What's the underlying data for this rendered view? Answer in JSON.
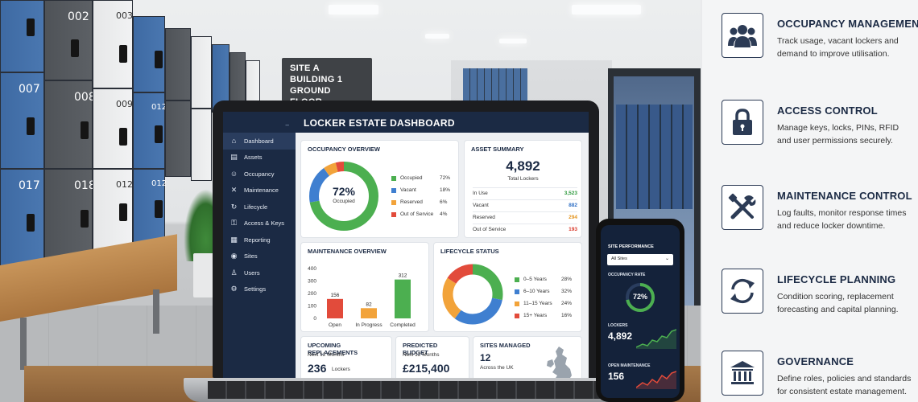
{
  "scene": {
    "sign": [
      "SITE A",
      "BUILDING 1",
      "GROUND FLOOR"
    ],
    "lockers": [
      {
        "num": "002",
        "color": "grey"
      },
      {
        "num": "003",
        "color": "white"
      },
      {
        "num": "007",
        "color": "blue"
      },
      {
        "num": "008",
        "color": "grey"
      },
      {
        "num": "009",
        "color": "white"
      },
      {
        "num": "012",
        "color": "blue"
      },
      {
        "num": "017",
        "color": "blue"
      },
      {
        "num": "018",
        "color": "grey"
      },
      {
        "num": "012",
        "color": "white"
      },
      {
        "num": "012",
        "color": "blue"
      }
    ]
  },
  "dashboard": {
    "title": "LOCKER ESTATE DASHBOARD",
    "nav": [
      {
        "label": "Dashboard",
        "icon": "home-icon",
        "glyph": "⌂"
      },
      {
        "label": "Assets",
        "icon": "assets-icon",
        "glyph": "▤"
      },
      {
        "label": "Occupancy",
        "icon": "person-icon",
        "glyph": "☺"
      },
      {
        "label": "Maintenance",
        "icon": "wrench-icon",
        "glyph": "✕"
      },
      {
        "label": "Lifecycle",
        "icon": "refresh-icon",
        "glyph": "↻"
      },
      {
        "label": "Access & Keys",
        "icon": "key-icon",
        "glyph": "⚿"
      },
      {
        "label": "Reporting",
        "icon": "report-icon",
        "glyph": "▦"
      },
      {
        "label": "Sites",
        "icon": "location-icon",
        "glyph": "◉"
      },
      {
        "label": "Users",
        "icon": "user-icon",
        "glyph": "♙"
      },
      {
        "label": "Settings",
        "icon": "gear-icon",
        "glyph": "⚙"
      }
    ],
    "occupancy": {
      "title": "OCCUPANCY OVERVIEW",
      "center_value": "72%",
      "center_label": "Occupied",
      "slices": [
        {
          "label": "Occupied",
          "value": "72%",
          "pct": 72,
          "color": "#4caf50"
        },
        {
          "label": "Vacant",
          "value": "18%",
          "pct": 18,
          "color": "#3f7fd0"
        },
        {
          "label": "Reserved",
          "value": "6%",
          "pct": 6,
          "color": "#f2a33a"
        },
        {
          "label": "Out of Service",
          "value": "4%",
          "pct": 4,
          "color": "#e24b3b"
        }
      ]
    },
    "asset_summary": {
      "title": "ASSET SUMMARY",
      "total": "4,892",
      "total_label": "Total Lockers",
      "rows": [
        {
          "label": "In Use",
          "value": "3,523",
          "color": "#2e9a3e"
        },
        {
          "label": "Vacant",
          "value": "882",
          "color": "#2f6fc5"
        },
        {
          "label": "Reserved",
          "value": "294",
          "color": "#e39520"
        },
        {
          "label": "Out of Service",
          "value": "193",
          "color": "#d9382a"
        }
      ]
    },
    "maintenance": {
      "title": "MAINTENANCE OVERVIEW",
      "yticks": [
        "400",
        "300",
        "200",
        "100",
        "0"
      ],
      "ymax": 400,
      "bars": [
        {
          "label": "Open",
          "value": 156,
          "display": "156",
          "color": "#e24b3b"
        },
        {
          "label": "In Progress",
          "value": 82,
          "display": "82",
          "color": "#f2a33a"
        },
        {
          "label": "Completed",
          "value": 312,
          "display": "312",
          "color": "#4caf50"
        }
      ]
    },
    "lifecycle": {
      "title": "LIFECYCLE STATUS",
      "slices": [
        {
          "label": "0–5 Years",
          "value": "28%",
          "pct": 28,
          "color": "#4caf50"
        },
        {
          "label": "6–10 Years",
          "value": "32%",
          "pct": 32,
          "color": "#3f7fd0"
        },
        {
          "label": "11–15 Years",
          "value": "24%",
          "pct": 24,
          "color": "#f2a33a"
        },
        {
          "label": "15+ Years",
          "value": "16%",
          "pct": 16,
          "color": "#e24b3b"
        }
      ]
    },
    "replacements": {
      "title": "UPCOMING REPLACEMENTS",
      "sub": "Next 12 Months",
      "value": "236",
      "unit": "Lockers"
    },
    "budget": {
      "title": "PREDICTED BUDGET",
      "sub": "Next 12 Months",
      "value": "£215,400"
    },
    "sites": {
      "title": "SITES MANAGED",
      "value": "12",
      "sub": "Across the UK"
    }
  },
  "phone": {
    "title": "SITE PERFORMANCE",
    "select": "All Sites",
    "occupancy_label": "OCCUPANCY RATE",
    "occupancy_value": "72%",
    "occupancy_pct": 72,
    "lockers_label": "LOCKERS",
    "lockers_value": "4,892",
    "open_label": "OPEN MAINTENANCE",
    "open_value": "156"
  },
  "features": [
    {
      "icon": "users-icon",
      "title": "OCCUPANCY MANAGEMENT",
      "text": "Track usage, vacant lockers and demand to improve utilisation."
    },
    {
      "icon": "lock-icon",
      "title": "ACCESS CONTROL",
      "text": "Manage keys, locks, PINs, RFID and user permissions securely."
    },
    {
      "icon": "tools-icon",
      "title": "MAINTENANCE CONTROL",
      "text": "Log faults, monitor response times and reduce locker downtime."
    },
    {
      "icon": "cycle-icon",
      "title": "LIFECYCLE PLANNING",
      "text": "Condition scoring, replacement forecasting and capital planning."
    },
    {
      "icon": "institution-icon",
      "title": "GOVERNANCE",
      "text": "Define roles, policies and standards for consistent estate management."
    }
  ]
}
